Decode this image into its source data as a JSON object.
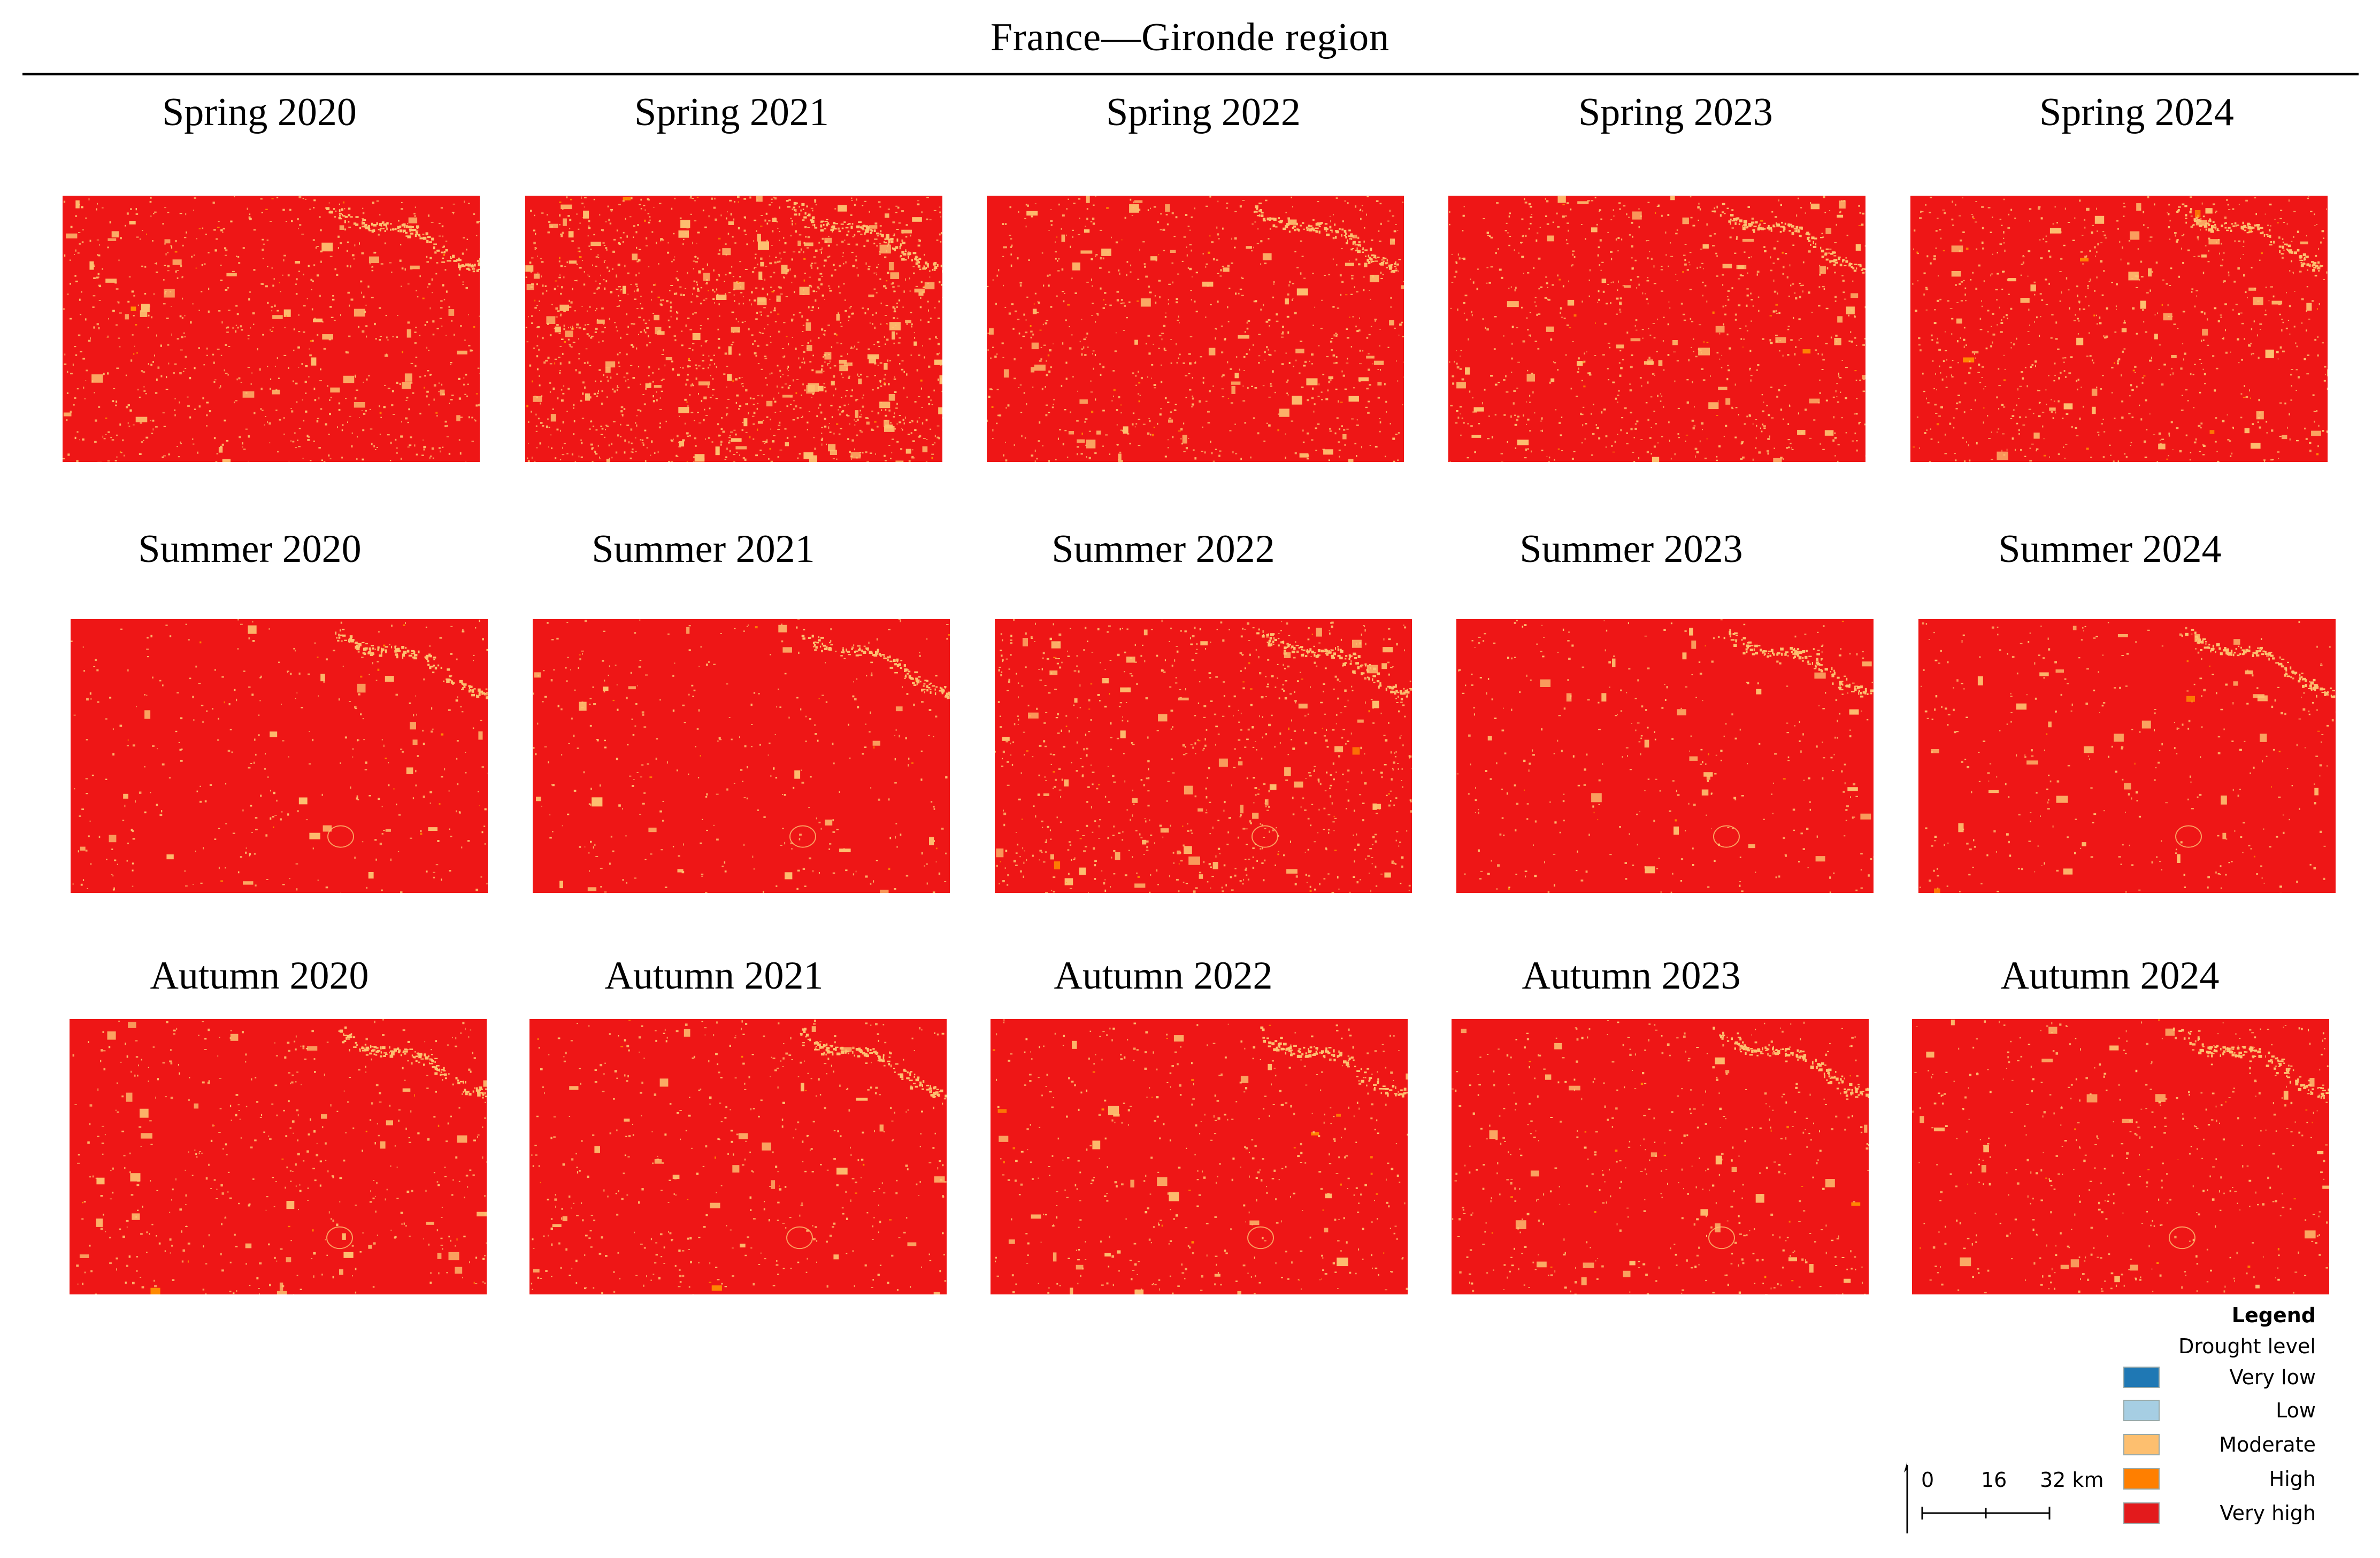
{
  "title": "France—Gironde region",
  "panels": [
    {
      "label": "Spring 2020",
      "season": "spring",
      "year": 2020
    },
    {
      "label": "Spring 2021",
      "season": "spring",
      "year": 2021
    },
    {
      "label": "Spring 2022",
      "season": "spring",
      "year": 2022
    },
    {
      "label": "Spring 2023",
      "season": "spring",
      "year": 2023
    },
    {
      "label": "Spring 2024",
      "season": "spring",
      "year": 2024
    },
    {
      "label": "Summer 2020",
      "season": "summer",
      "year": 2020
    },
    {
      "label": "Summer 2021",
      "season": "summer",
      "year": 2021
    },
    {
      "label": "Summer 2022",
      "season": "summer",
      "year": 2022
    },
    {
      "label": "Summer 2023",
      "season": "summer",
      "year": 2023
    },
    {
      "label": "Summer 2024",
      "season": "summer",
      "year": 2024
    },
    {
      "label": "Autumn 2020",
      "season": "autumn",
      "year": 2020
    },
    {
      "label": "Autumn 2021",
      "season": "autumn",
      "year": 2021
    },
    {
      "label": "Autumn 2022",
      "season": "autumn",
      "year": 2022
    },
    {
      "label": "Autumn 2023",
      "season": "autumn",
      "year": 2023
    },
    {
      "label": "Autumn 2024",
      "season": "autumn",
      "year": 2024
    }
  ],
  "legend": {
    "title": "Legend",
    "subtitle": "Drought level",
    "items": [
      {
        "label": "Very low",
        "color": "#1f78b4"
      },
      {
        "label": "Low",
        "color": "#a6cee3"
      },
      {
        "label": "Moderate",
        "color": "#fdbf6f"
      },
      {
        "label": "High",
        "color": "#ff7f00"
      },
      {
        "label": "Very high",
        "color": "#e31a1c"
      }
    ]
  },
  "scalebar": {
    "ticks": [
      "0",
      "16",
      "32 km"
    ]
  },
  "colors": {
    "very_high": "#ee1616",
    "moderate": "#fdc070",
    "high": "#ff8c00"
  }
}
